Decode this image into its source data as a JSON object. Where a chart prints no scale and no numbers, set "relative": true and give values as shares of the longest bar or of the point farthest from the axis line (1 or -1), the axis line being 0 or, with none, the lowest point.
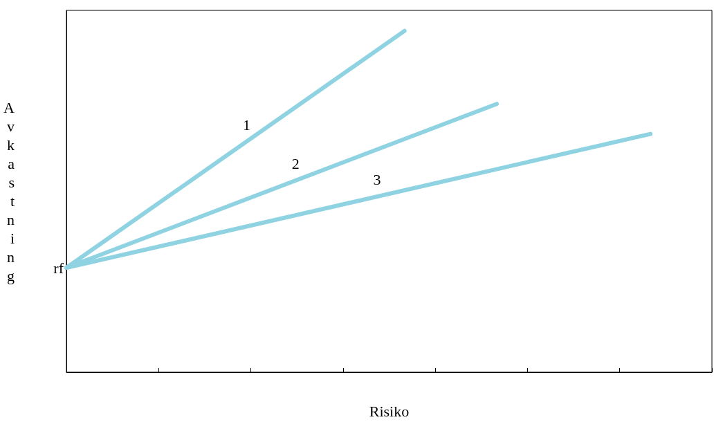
{
  "chart_data": {
    "type": "line",
    "relative": true,
    "xlabel": "Risiko",
    "ylabel": "Avkastning",
    "categories": [
      null,
      null,
      null,
      null,
      null,
      null,
      null,
      null,
      null,
      null,
      null,
      null,
      null,
      null,
      null,
      null,
      null,
      null,
      null,
      null,
      null,
      null
    ],
    "grid": false,
    "marker": "none",
    "line_style": "solid",
    "series": [
      {
        "name": "1",
        "color": "#8fd3e3",
        "values": [
          0.306,
          null,
          null,
          null,
          null,
          null,
          null,
          null,
          null,
          null,
          null,
          1,
          null,
          null,
          null,
          null,
          null,
          null,
          null,
          null,
          null,
          null
        ]
      },
      {
        "name": "2",
        "color": "#8fd3e3",
        "values": [
          0.306,
          null,
          null,
          null,
          null,
          null,
          null,
          null,
          null,
          null,
          null,
          null,
          null,
          null,
          0.786,
          null,
          null,
          null,
          null,
          null,
          null,
          null
        ]
      },
      {
        "name": "3",
        "color": "#8fd3e3",
        "values": [
          0.306,
          null,
          null,
          null,
          null,
          null,
          null,
          null,
          null,
          null,
          null,
          null,
          null,
          null,
          null,
          null,
          null,
          null,
          null,
          0.698,
          null,
          null
        ]
      }
    ],
    "annotations": [
      "rf"
    ]
  }
}
